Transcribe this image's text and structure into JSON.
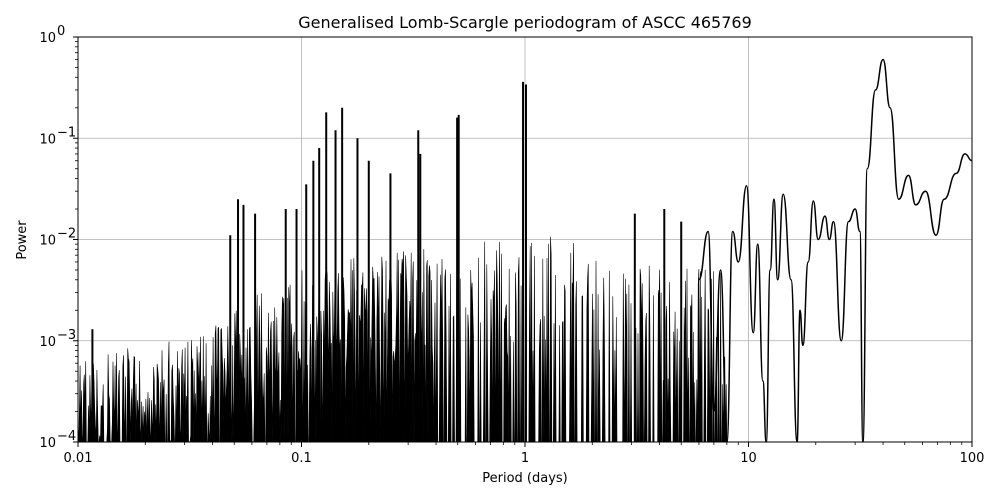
{
  "chart_data": {
    "type": "line",
    "title": "Generalised Lomb-Scargle periodogram of ASCC 465769",
    "xlabel": "Period (days)",
    "ylabel": "Power",
    "xscale": "log",
    "yscale": "log",
    "xlim": [
      0.01,
      100
    ],
    "ylim": [
      0.0001,
      1
    ],
    "grid": true,
    "legend": null,
    "line_color": "#000000",
    "grid_color": "#b0b0b0",
    "x_ticks": [
      {
        "value": 0.01,
        "label": "0.01"
      },
      {
        "value": 0.1,
        "label": "0.1"
      },
      {
        "value": 1,
        "label": "1"
      },
      {
        "value": 10,
        "label": "10"
      },
      {
        "value": 100,
        "label": "100"
      }
    ],
    "y_ticks": [
      {
        "value": 0.0001,
        "base": "10",
        "exp": "−4"
      },
      {
        "value": 0.001,
        "base": "10",
        "exp": "−3"
      },
      {
        "value": 0.01,
        "base": "10",
        "exp": "−2"
      },
      {
        "value": 0.1,
        "base": "10",
        "exp": "−1"
      },
      {
        "value": 1,
        "base": "10",
        "exp": "0"
      }
    ],
    "noise_envelope": [
      [
        0.01,
        0.0007
      ],
      [
        0.02,
        0.0009
      ],
      [
        0.03,
        0.0012
      ],
      [
        0.05,
        0.002
      ],
      [
        0.07,
        0.0035
      ],
      [
        0.1,
        0.005
      ],
      [
        0.15,
        0.007
      ],
      [
        0.2,
        0.007
      ],
      [
        0.3,
        0.008
      ],
      [
        0.5,
        0.009
      ],
      [
        0.8,
        0.01
      ],
      [
        1.0,
        0.012
      ],
      [
        1.5,
        0.01
      ],
      [
        2.0,
        0.008
      ],
      [
        3.0,
        0.006
      ],
      [
        5.0,
        0.006
      ],
      [
        8.0,
        0.005
      ]
    ],
    "peaks": [
      {
        "period": 0.0116,
        "power": 0.0013
      },
      {
        "period": 0.048,
        "power": 0.011
      },
      {
        "period": 0.052,
        "power": 0.025
      },
      {
        "period": 0.055,
        "power": 0.022
      },
      {
        "period": 0.062,
        "power": 0.018
      },
      {
        "period": 0.085,
        "power": 0.02
      },
      {
        "period": 0.095,
        "power": 0.02
      },
      {
        "period": 0.105,
        "power": 0.035
      },
      {
        "period": 0.113,
        "power": 0.06
      },
      {
        "period": 0.12,
        "power": 0.08
      },
      {
        "period": 0.129,
        "power": 0.18
      },
      {
        "period": 0.142,
        "power": 0.12
      },
      {
        "period": 0.152,
        "power": 0.2
      },
      {
        "period": 0.178,
        "power": 0.1
      },
      {
        "period": 0.2,
        "power": 0.06
      },
      {
        "period": 0.25,
        "power": 0.045
      },
      {
        "period": 0.333,
        "power": 0.12
      },
      {
        "period": 0.34,
        "power": 0.07
      },
      {
        "period": 0.497,
        "power": 0.16
      },
      {
        "period": 0.505,
        "power": 0.17
      },
      {
        "period": 0.98,
        "power": 0.36
      },
      {
        "period": 1.01,
        "power": 0.34
      },
      {
        "period": 3.1,
        "power": 0.018
      },
      {
        "period": 4.2,
        "power": 0.02
      },
      {
        "period": 5.0,
        "power": 0.015
      }
    ],
    "smooth_curve": [
      [
        6.0,
        0.004
      ],
      [
        6.6,
        0.012
      ],
      [
        7.0,
        0.0002
      ],
      [
        7.5,
        0.005
      ],
      [
        8.0,
        0.0001
      ],
      [
        8.5,
        0.012
      ],
      [
        9.0,
        0.006
      ],
      [
        9.8,
        0.034
      ],
      [
        10.5,
        0.0012
      ],
      [
        11.0,
        0.009
      ],
      [
        11.6,
        0.0004
      ],
      [
        12.0,
        0.0001
      ],
      [
        12.5,
        0.005
      ],
      [
        13.0,
        0.025
      ],
      [
        13.5,
        0.004
      ],
      [
        14.3,
        0.028
      ],
      [
        15.5,
        0.004
      ],
      [
        16.5,
        0.0001
      ],
      [
        17.0,
        0.002
      ],
      [
        17.5,
        0.0009
      ],
      [
        18.5,
        0.006
      ],
      [
        19.5,
        0.024
      ],
      [
        20.5,
        0.01
      ],
      [
        22.0,
        0.017
      ],
      [
        23.0,
        0.01
      ],
      [
        24.0,
        0.015
      ],
      [
        26.0,
        0.001
      ],
      [
        28.0,
        0.015
      ],
      [
        30.0,
        0.02
      ],
      [
        31.5,
        0.012
      ],
      [
        32.5,
        0.0001
      ],
      [
        34.0,
        0.05
      ],
      [
        37.0,
        0.3
      ],
      [
        40.0,
        0.6
      ],
      [
        43.0,
        0.2
      ],
      [
        47.0,
        0.025
      ],
      [
        52.0,
        0.043
      ],
      [
        56.0,
        0.022
      ],
      [
        62.0,
        0.03
      ],
      [
        69.0,
        0.011
      ],
      [
        75.0,
        0.025
      ],
      [
        85.0,
        0.045
      ],
      [
        93.0,
        0.07
      ],
      [
        100.0,
        0.06
      ]
    ]
  }
}
